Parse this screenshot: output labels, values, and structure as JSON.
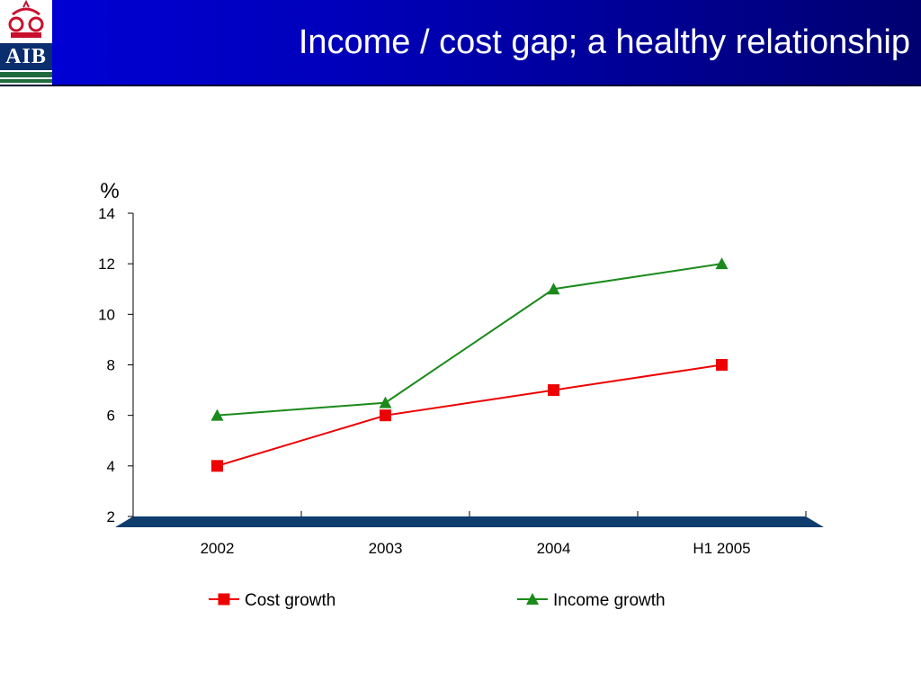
{
  "header": {
    "title": "Income / cost gap; a healthy relationship",
    "logo_text": "AIB",
    "background_color": "#0000c8"
  },
  "chart_data": {
    "type": "line",
    "title": "",
    "xlabel": "",
    "ylabel": "%",
    "categories": [
      "2002",
      "2003",
      "2004",
      "H1 2005"
    ],
    "ylim": [
      2,
      14
    ],
    "yticks": [
      2,
      4,
      6,
      8,
      10,
      12,
      14
    ],
    "grid": false,
    "legend_position": "bottom",
    "axis_band_color": "#0f3d6e",
    "series": [
      {
        "name": "Cost growth",
        "values": [
          4,
          6,
          7,
          8
        ],
        "color": "#ee0000",
        "marker": "square"
      },
      {
        "name": "Income growth",
        "values": [
          6,
          6.5,
          11,
          12
        ],
        "color": "#1a8a1a",
        "marker": "triangle"
      }
    ]
  }
}
